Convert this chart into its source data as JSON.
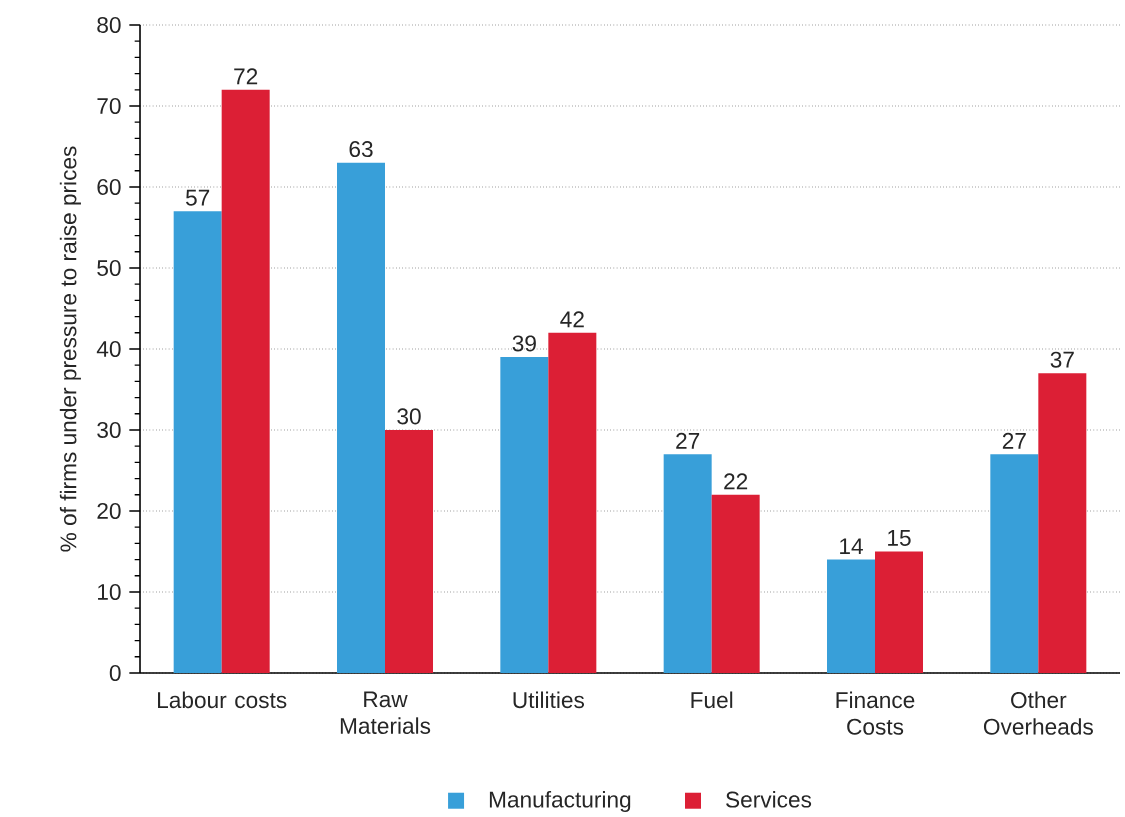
{
  "chart_data": {
    "type": "bar",
    "ylabel": "% of firms under pressure to raise prices",
    "categories": [
      "Labour costs",
      "Raw Materials",
      "Utilities",
      "Fuel",
      "Finance Costs",
      "Other Overheads"
    ],
    "series": [
      {
        "name": "Manufacturing",
        "color": "#389fd9",
        "values": [
          57,
          63,
          39,
          27,
          14,
          27
        ]
      },
      {
        "name": "Services",
        "color": "#dc1f35",
        "values": [
          72,
          30,
          42,
          22,
          15,
          37
        ]
      }
    ],
    "ylim": [
      0,
      80
    ],
    "yticks": [
      0,
      10,
      20,
      30,
      40,
      50,
      60,
      70,
      80
    ],
    "grid": "y",
    "legend": "bottom",
    "data_labels": true
  }
}
